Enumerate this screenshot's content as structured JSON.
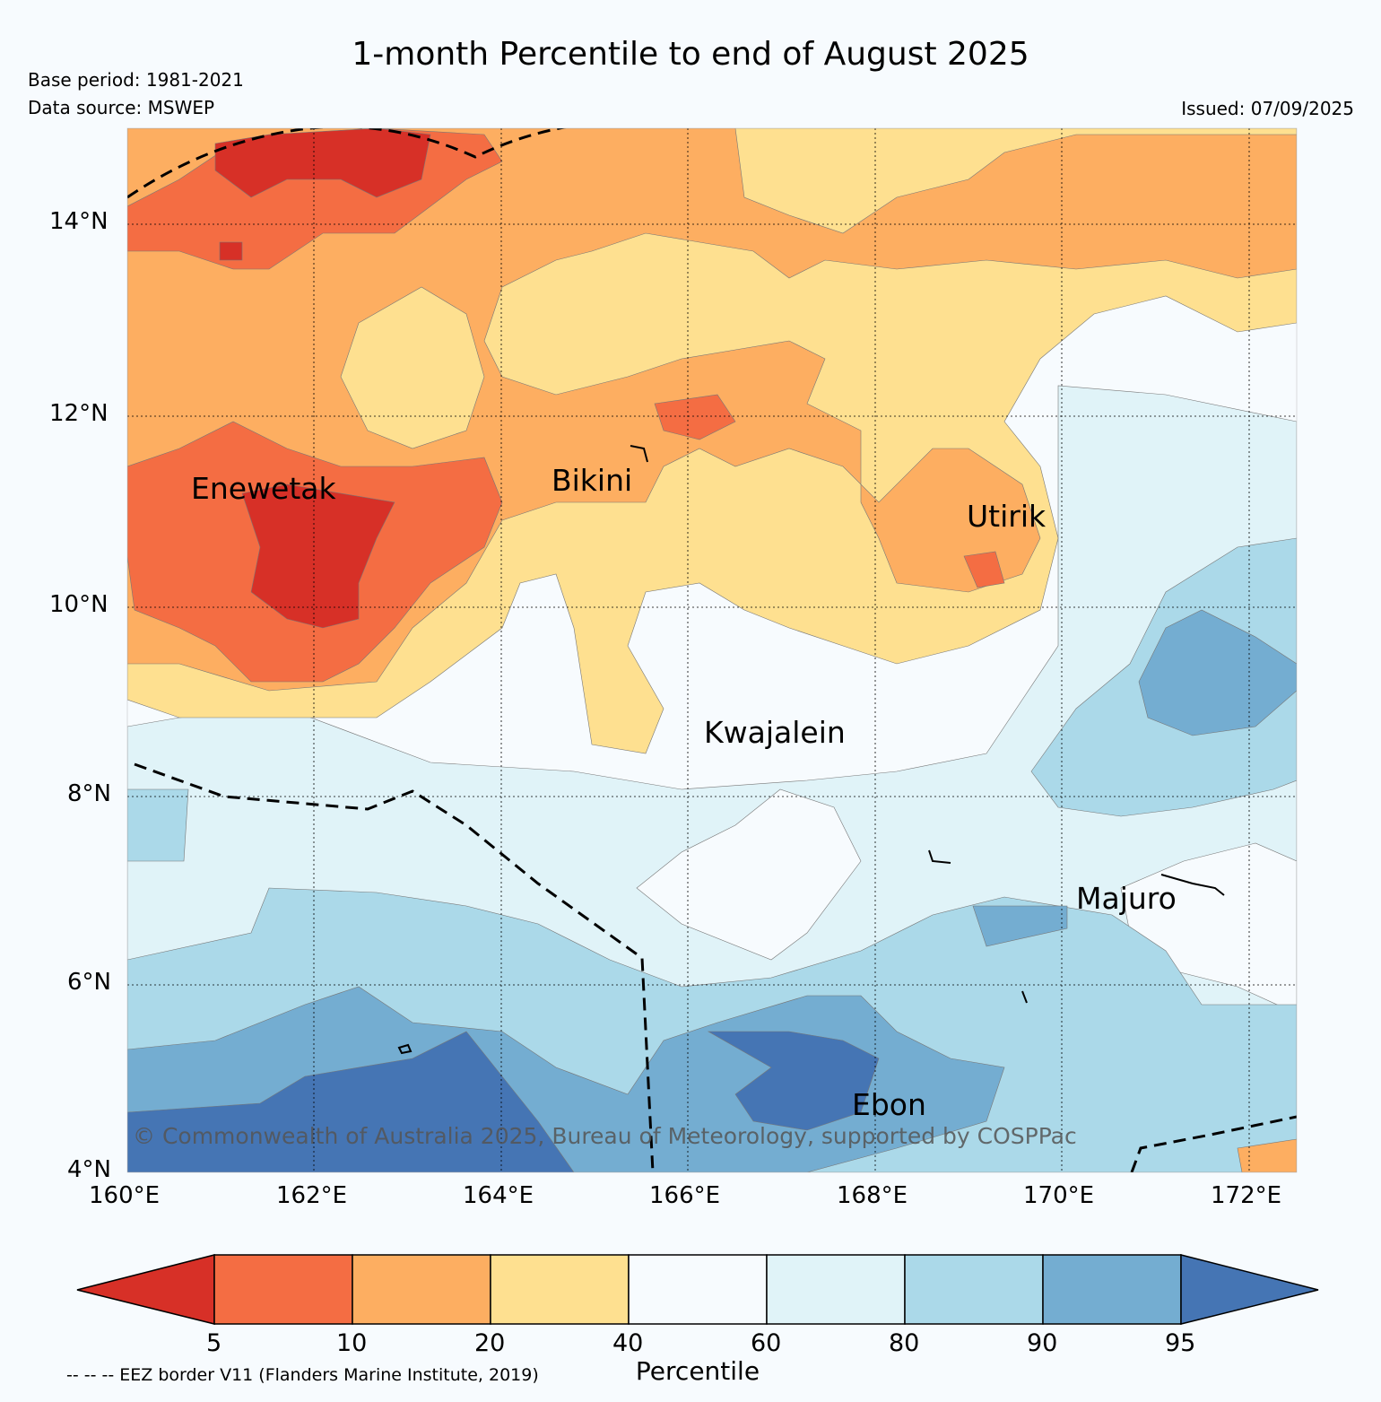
{
  "title": "1-month Percentile to end of August 2025",
  "base_period": "Base period: 1981-2021",
  "data_source": "Data source: MSWEP",
  "issued": "Issued: 07/09/2025",
  "axes": {
    "lat_ticks": [
      "14°N",
      "12°N",
      "10°N",
      "8°N",
      "6°N",
      "4°N"
    ],
    "lon_ticks": [
      "160°E",
      "162°E",
      "164°E",
      "166°E",
      "168°E",
      "170°E",
      "172°E"
    ]
  },
  "places": {
    "enewetak": "Enewetak",
    "bikini": "Bikini",
    "utirik": "Utirik",
    "kwajalein": "Kwajalein",
    "majuro": "Majuro",
    "ebon": "Ebon"
  },
  "copyright": "© Commonwealth of Australia 2025, Bureau of Meteorology, supported by COSPPac",
  "colorbar": {
    "label": "Percentile",
    "ticks": [
      "5",
      "10",
      "20",
      "40",
      "60",
      "80",
      "90",
      "95"
    ],
    "colors": [
      "#d73027",
      "#f46d43",
      "#fdae61",
      "#fee090",
      "#f7fbfe",
      "#e0f3f8",
      "#abd9e9",
      "#74add1",
      "#4575b4"
    ]
  },
  "legend_note": "-- -- -- EEZ border V11 (Flanders Marine Institute, 2019)"
}
